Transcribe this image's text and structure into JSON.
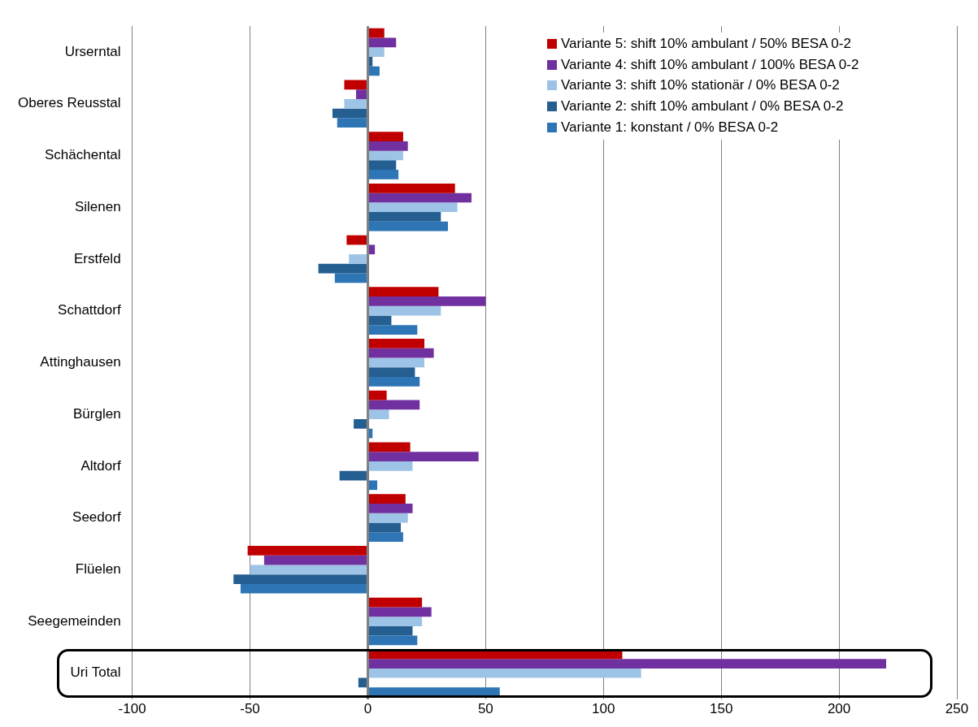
{
  "chart_data": {
    "type": "bar",
    "orientation": "horizontal",
    "categories": [
      "Urserntal",
      "Oberes Reusstal",
      "Schächental",
      "Silenen",
      "Erstfeld",
      "Schattdorf",
      "Attinghausen",
      "Bürglen",
      "Altdorf",
      "Seedorf",
      "Flüelen",
      "Seegemeinden",
      "Uri Total"
    ],
    "series": [
      {
        "name": "Variante 5: shift 10% ambulant / 50% BESA 0-2",
        "color": "#c00000",
        "values": [
          7,
          -10,
          15,
          37,
          -9,
          30,
          24,
          8,
          18,
          16,
          -51,
          23,
          108
        ]
      },
      {
        "name": "Variante 4: shift 10% ambulant / 100% BESA 0-2",
        "color": "#7030a0",
        "values": [
          12,
          -5,
          17,
          44,
          3,
          50,
          28,
          22,
          47,
          19,
          -44,
          27,
          220
        ]
      },
      {
        "name": "Variante 3: shift 10% stationär / 0% BESA 0-2",
        "color": "#9dc3e6",
        "values": [
          7,
          -10,
          15,
          38,
          -8,
          31,
          24,
          9,
          19,
          17,
          -50,
          23,
          116
        ]
      },
      {
        "name": "Variante 2: shift 10% ambulant / 0% BESA 0-2",
        "color": "#255e91",
        "values": [
          2,
          -15,
          12,
          31,
          -21,
          10,
          20,
          -6,
          -12,
          14,
          -57,
          19,
          -4
        ]
      },
      {
        "name": "Variante 1: konstant / 0% BESA 0-2",
        "color": "#2e75b6",
        "values": [
          5,
          -13,
          13,
          34,
          -14,
          21,
          22,
          2,
          4,
          15,
          -54,
          21,
          56
        ]
      }
    ],
    "xlim": [
      -100,
      250
    ],
    "xticks": [
      -100,
      -50,
      0,
      50,
      100,
      150,
      200,
      250
    ],
    "grid": "x",
    "legend": "top right"
  }
}
